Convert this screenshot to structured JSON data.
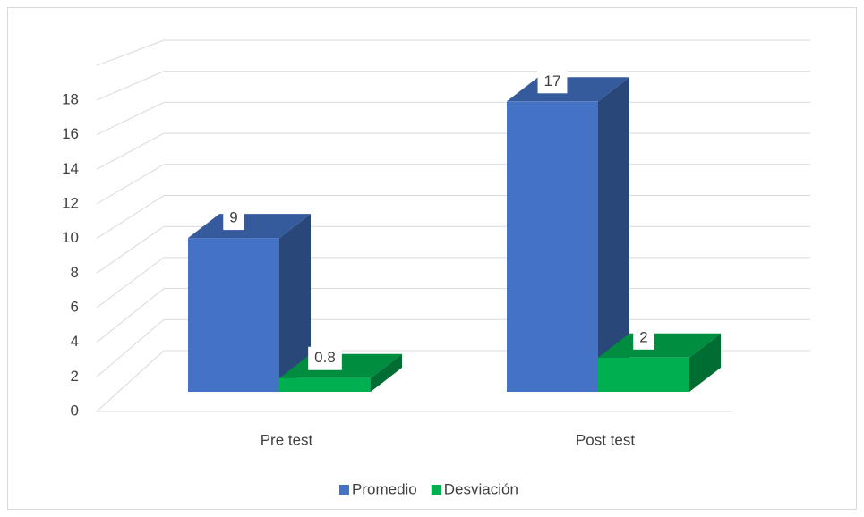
{
  "chart_data": {
    "type": "bar3d",
    "categories": [
      "Pre test",
      "Post test"
    ],
    "series": [
      {
        "name": "Promedio",
        "color": "#4472c4",
        "values": [
          9,
          17
        ]
      },
      {
        "name": "Desviación",
        "color": "#00b050",
        "values": [
          0.8,
          2
        ]
      }
    ],
    "ylim": [
      0,
      20
    ],
    "yticks": [
      0,
      2,
      4,
      6,
      8,
      10,
      12,
      14,
      16,
      18
    ],
    "grid": true,
    "legend": "bottom"
  }
}
